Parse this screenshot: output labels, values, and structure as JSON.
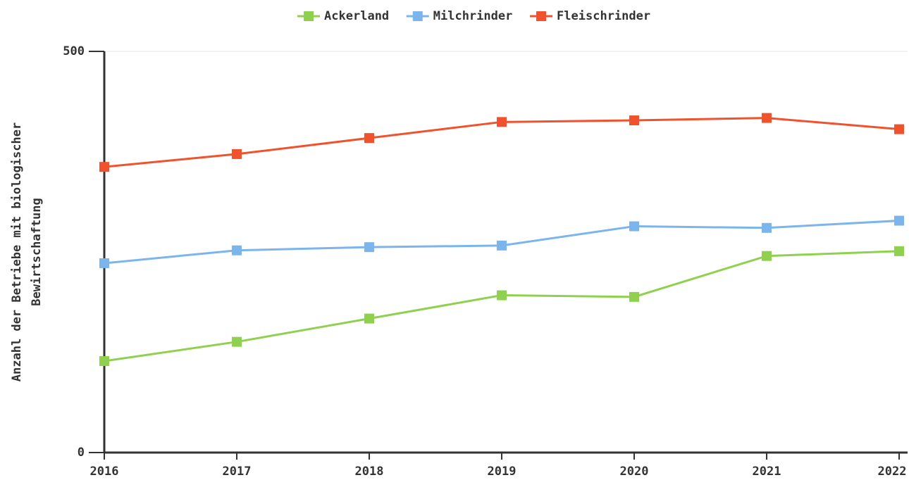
{
  "chart_data": {
    "type": "line",
    "ylabel": [
      "Anzahl der Betriebe mit biologischer",
      "Bewirtschaftung"
    ],
    "x": [
      2016,
      2017,
      2018,
      2019,
      2020,
      2021,
      2022
    ],
    "xlim": [
      2016,
      2022
    ],
    "xticks": [
      2016,
      2017,
      2018,
      2019,
      2020,
      2021,
      2022
    ],
    "ylim": [
      0,
      500
    ],
    "yticks": [
      0,
      500
    ],
    "grid": true,
    "legend": "top",
    "series": [
      {
        "name": "Ackerland",
        "color": "#8fd14f",
        "values": [
          114,
          138,
          167,
          196,
          194,
          245,
          251
        ]
      },
      {
        "name": "Milchrinder",
        "color": "#7cb5ec",
        "values": [
          236,
          252,
          256,
          258,
          282,
          280,
          289
        ]
      },
      {
        "name": "Fleischrinder",
        "color": "#f0522e",
        "values": [
          356,
          372,
          392,
          412,
          414,
          417,
          403
        ]
      }
    ]
  }
}
